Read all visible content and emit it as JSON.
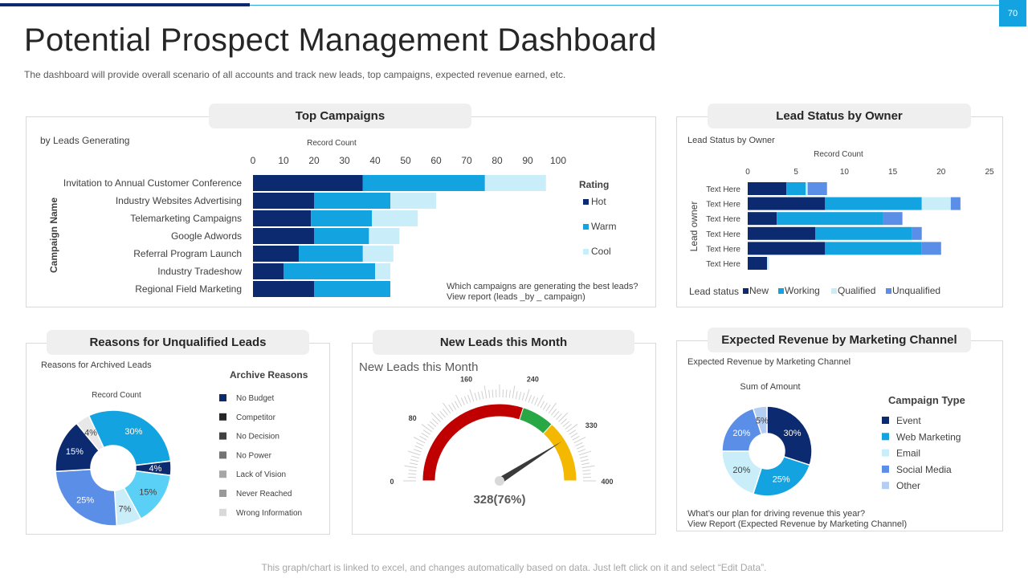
{
  "page": {
    "number": "70",
    "title": "Potential Prospect Management Dashboard",
    "subtitle": "The dashboard will provide overall scenario of all accounts and track new leads, top campaigns, expected revenue earned, etc.",
    "footer": "This graph/chart is linked to excel,  and changes automatically based on data. Just left click on it and select “Edit Data”."
  },
  "colors": {
    "navy": "#0b2a6f",
    "blue": "#13a3e0",
    "light": "#c9eefa",
    "periwinkle": "#5b8ee6",
    "pale": "#b4cdf2"
  },
  "top_campaigns": {
    "tab": "Top Campaigns",
    "sublabel": "by Leads Generating",
    "note_line1": "Which campaigns are generating the best leads?",
    "note_line2": "View report (leads _by _ campaign)"
  },
  "lead_status": {
    "tab": "Lead Status by Owner",
    "sublabel": "Lead Status by Owner"
  },
  "unqualified": {
    "tab": "Reasons for Unqualified Leads",
    "sublabel": "Reasons for Archived Leads"
  },
  "new_leads": {
    "tab": "New Leads this Month",
    "sublabel": "New Leads this Month"
  },
  "revenue": {
    "tab": "Expected Revenue by Marketing Channel",
    "sublabel": "Expected Revenue by Marketing Channel",
    "note_line1": "What’s our plan for driving revenue this year?",
    "note_line2": "View Report (Expected Revenue by Marketing Channel)"
  },
  "chart_data": [
    {
      "id": "top_campaigns",
      "type": "bar",
      "orientation": "horizontal",
      "stacked": true,
      "title": "Record Count",
      "xlabel": "Record Count",
      "ylabel": "Campaign Name",
      "xlim": [
        0,
        100
      ],
      "xticks": [
        "0",
        "10",
        "20",
        "30",
        "40",
        "50",
        "60",
        "70",
        "80",
        "90",
        "100"
      ],
      "categories": [
        "Invitation to Annual Customer Conference",
        "Industry Websites Advertising",
        "Telemarketing Campaigns",
        "Google Adwords",
        "Referral Program Launch",
        "Industry Tradeshow",
        "Regional Field Marketing"
      ],
      "legend_title": "Rating",
      "series": [
        {
          "name": "Hot",
          "values": [
            36,
            20,
            19,
            20,
            15,
            10,
            20
          ]
        },
        {
          "name": "Warm",
          "values": [
            40,
            25,
            20,
            18,
            21,
            30,
            25
          ]
        },
        {
          "name": "Cool",
          "values": [
            20,
            15,
            15,
            10,
            10,
            5,
            0
          ]
        }
      ]
    },
    {
      "id": "lead_status",
      "type": "bar",
      "orientation": "horizontal",
      "stacked": true,
      "xlabel": "Record Count",
      "ylabel": "Lead owner",
      "xlim": [
        0,
        25
      ],
      "xticks": [
        "0",
        "5",
        "10",
        "15",
        "20",
        "25"
      ],
      "categories": [
        "Text Here",
        "Text Here",
        "Text Here",
        "Text Here",
        "Text Here",
        "Text Here"
      ],
      "legend_title": "Lead status",
      "series": [
        {
          "name": "New",
          "values": [
            4,
            8,
            3,
            7,
            8,
            2
          ]
        },
        {
          "name": "Working",
          "values": [
            2,
            10,
            11,
            10,
            10,
            0
          ]
        },
        {
          "name": "Qualified",
          "values": [
            0.2,
            3,
            0,
            0,
            0,
            0.2
          ]
        },
        {
          "name": "Unqualified",
          "values": [
            2,
            1,
            2,
            1,
            2,
            0
          ]
        }
      ]
    },
    {
      "id": "unqualified",
      "type": "pie",
      "donut": true,
      "title": "Record Count",
      "legend_title": "Archive Reasons",
      "legend": [
        "No Budget",
        "Competitor",
        "No Decision",
        "No Power",
        "Lack of Vision",
        "Never Reached",
        "Wrong Information"
      ],
      "legend_colors": [
        "#0b2a6f",
        "#262626",
        "#404040",
        "#737373",
        "#a6a6a6",
        "#999999",
        "#d9d9d9"
      ],
      "slices": [
        {
          "label": "30%",
          "value": 30,
          "color": "#13a3e0"
        },
        {
          "label": "4%",
          "value": 4,
          "color": "#0b2a6f"
        },
        {
          "label": "15%",
          "value": 15,
          "color": "#5bd0f7"
        },
        {
          "label": "7%",
          "value": 7,
          "color": "#c9eefa"
        },
        {
          "label": "25%",
          "value": 25,
          "color": "#5b8ee6"
        },
        {
          "label": "15%",
          "value": 15,
          "color": "#0b2a6f"
        },
        {
          "label": "4%",
          "value": 4,
          "color": "#e8e8e8"
        }
      ]
    },
    {
      "id": "new_leads",
      "type": "gauge",
      "min": 0,
      "max": 400,
      "value": 328,
      "percent": 76,
      "value_label": "328(76%)",
      "tick_labels": [
        "0",
        "80",
        "160",
        "240",
        "330",
        "400"
      ],
      "tick_values": [
        0,
        80,
        160,
        240,
        330,
        400
      ],
      "bands": [
        {
          "from": 0,
          "to": 240,
          "color": "#c00000"
        },
        {
          "from": 240,
          "to": 295,
          "color": "#27a844"
        },
        {
          "from": 295,
          "to": 400,
          "color": "#f5b800"
        }
      ]
    },
    {
      "id": "revenue",
      "type": "pie",
      "donut": true,
      "title": "Sum of Amount",
      "legend_title": "Campaign Type",
      "legend": [
        "Event",
        "Web Marketing",
        "Email",
        "Social Media",
        "Other"
      ],
      "legend_colors": [
        "#0b2a6f",
        "#13a3e0",
        "#c9eefa",
        "#5b8ee6",
        "#b4cdf2"
      ],
      "slices": [
        {
          "label": "30%",
          "value": 30,
          "color": "#0b2a6f"
        },
        {
          "label": "25%",
          "value": 25,
          "color": "#13a3e0"
        },
        {
          "label": "20%",
          "value": 20,
          "color": "#c9eefa"
        },
        {
          "label": "20%",
          "value": 20,
          "color": "#5b8ee6"
        },
        {
          "label": "5%",
          "value": 5,
          "color": "#b4cdf2"
        }
      ]
    }
  ]
}
